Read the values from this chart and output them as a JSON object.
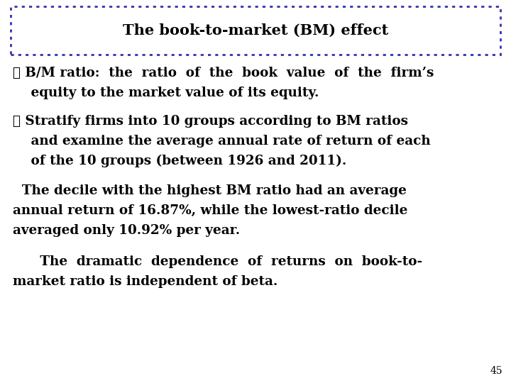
{
  "title": "The book-to-market (BM) effect",
  "background_color": "#ffffff",
  "title_border_color": "#3333aa",
  "bullet1_line1": "❖ B/M ratio:  the  ratio  of  the  book  value  of  the  firm’s",
  "bullet1_line2": "    equity to the market value of its equity.",
  "bullet2_line1": "❖ Stratify firms into 10 groups according to BM ratios",
  "bullet2_line2": "    and examine the average annual rate of return of each",
  "bullet2_line3": "    of the 10 groups (between 1926 and 2011).",
  "para1_line1": "  The decile with the highest BM ratio had an average",
  "para1_line2": "annual return of 16.87%, while the lowest-ratio decile",
  "para1_line3": "averaged only 10.92% per year.",
  "para2_line1": "      The  dramatic  dependence  of  returns  on  book-to-",
  "para2_line2": "market ratio is independent of beta.",
  "page_number": "45",
  "font_color": "#000000"
}
